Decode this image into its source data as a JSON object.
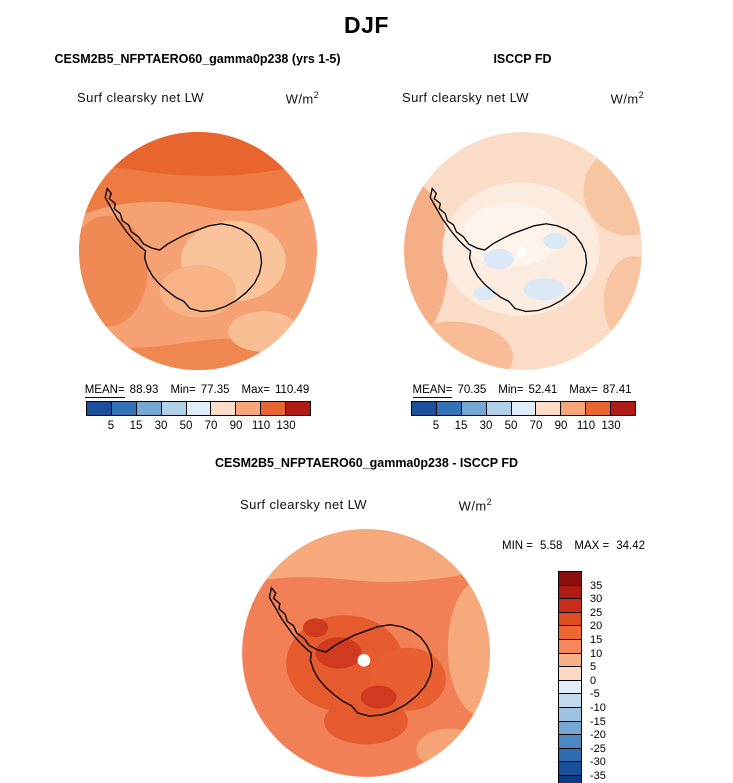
{
  "title": "DJF",
  "panels": [
    {
      "header": "CESM2B5_NFPTAERO60_gamma0p238 (yrs 1-5)",
      "subtitle": "Surf clearsky net LW",
      "units_base": "W/m",
      "units_exp": "2",
      "stats": {
        "mean_label": "MEAN=",
        "mean": "88.93",
        "min_label": "Min=",
        "min": "77.35",
        "max_label": "Max=",
        "max": "110.49"
      }
    },
    {
      "header": "ISCCP FD",
      "subtitle": "Surf clearsky net LW",
      "units_base": "W/m",
      "units_exp": "2",
      "stats": {
        "mean_label": "MEAN=",
        "mean": "70.35",
        "min_label": "Min=",
        "min": "52.41",
        "max_label": "Max=",
        "max": "87.41"
      }
    }
  ],
  "diff": {
    "header": "CESM2B5_NFPTAERO60_gamma0p238 - ISCCP FD",
    "subtitle": "Surf clearsky net LW",
    "units_base": "W/m",
    "units_exp": "2",
    "min_label": "MIN =",
    "min_value": "5.58",
    "max_label": "MAX =",
    "max_value": "34.42"
  },
  "colorbar_h": {
    "ticks": [
      "5",
      "15",
      "30",
      "50",
      "70",
      "90",
      "110",
      "130"
    ],
    "colors": [
      "#1a4f9c",
      "#3273b8",
      "#74a7d4",
      "#b0d0e8",
      "#e0ecf7",
      "#fbddc7",
      "#f6a679",
      "#e9652f",
      "#b01b15"
    ]
  },
  "colorbar_v": {
    "ticks": [
      "35",
      "30",
      "25",
      "20",
      "15",
      "10",
      "5",
      "0",
      "-5",
      "-10",
      "-15",
      "-20",
      "-25",
      "-30",
      "-35"
    ],
    "colors": [
      "#8c0f10",
      "#b01b15",
      "#cb2d1d",
      "#e04b24",
      "#ee6632",
      "#f5875a",
      "#f9b088",
      "#fcdac4",
      "#e4eef8",
      "#c3d9ee",
      "#9dc2e2",
      "#74a7d4",
      "#4c88c2",
      "#2f6cb0",
      "#1a4f9c",
      "#0c3a85"
    ]
  },
  "chart_data": [
    {
      "type": "heatmap",
      "title": "CESM2B5_NFPTAERO60_gamma0p238 (yrs 1-5)",
      "season": "DJF",
      "variable": "Surf clearsky net LW",
      "units": "W/m2",
      "projection": "south-polar",
      "stats": {
        "mean": 88.93,
        "min": 77.35,
        "max": 110.49
      },
      "contour_levels": [
        5,
        15,
        30,
        50,
        70,
        90,
        110,
        130
      ],
      "legend_position": "bottom"
    },
    {
      "type": "heatmap",
      "title": "ISCCP FD",
      "season": "DJF",
      "variable": "Surf clearsky net LW",
      "units": "W/m2",
      "projection": "south-polar",
      "stats": {
        "mean": 70.35,
        "min": 52.41,
        "max": 87.41
      },
      "contour_levels": [
        5,
        15,
        30,
        50,
        70,
        90,
        110,
        130
      ],
      "legend_position": "bottom"
    },
    {
      "type": "heatmap",
      "title": "CESM2B5_NFPTAERO60_gamma0p238 - ISCCP FD",
      "season": "DJF",
      "variable": "Surf clearsky net LW",
      "units": "W/m2",
      "projection": "south-polar",
      "stats": {
        "min": 5.58,
        "max": 34.42
      },
      "contour_levels": [
        35,
        30,
        25,
        20,
        15,
        10,
        5,
        0,
        -5,
        -10,
        -15,
        -20,
        -25,
        -30,
        -35
      ],
      "legend_position": "right"
    }
  ]
}
